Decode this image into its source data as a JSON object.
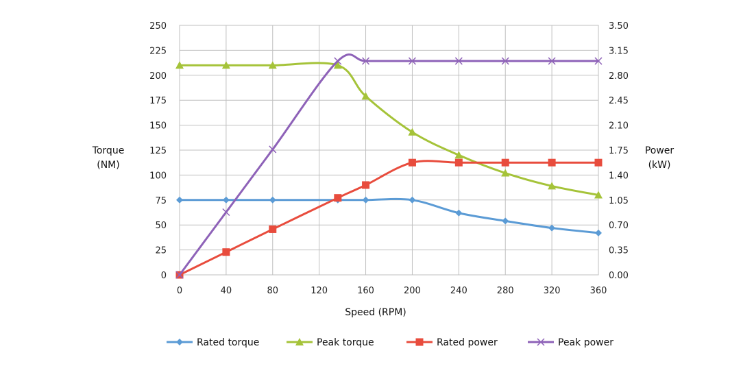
{
  "chart_data": {
    "type": "line",
    "xlabel": "Speed (RPM)",
    "ylabel_left": [
      "Torque",
      "(NM)"
    ],
    "ylabel_right": [
      "Power",
      "(kW)"
    ],
    "x_ticks": [
      "0",
      "40",
      "80",
      "120",
      "160",
      "200",
      "240",
      "280",
      "320",
      "360"
    ],
    "y_left_ticks": [
      "0",
      "25",
      "50",
      "75",
      "100",
      "125",
      "150",
      "175",
      "200",
      "225",
      "250"
    ],
    "y_right_ticks": [
      "0.00",
      "0.35",
      "0.70",
      "1.05",
      "1.40",
      "1.75",
      "2.10",
      "2.45",
      "2.80",
      "3.15",
      "3.50"
    ],
    "xlim": [
      0,
      360
    ],
    "ylim_left": [
      0,
      250
    ],
    "ylim_right": [
      0,
      3.5
    ],
    "grid": true,
    "legend_position": "bottom",
    "series": [
      {
        "name": "Rated torque",
        "axis": "left",
        "color": "#5b9bd5",
        "marker": "diamond",
        "x": [
          0,
          40,
          80,
          136,
          160,
          200,
          240,
          280,
          320,
          360
        ],
        "y": [
          75,
          75,
          75,
          75,
          75,
          75,
          62,
          54,
          47,
          42
        ]
      },
      {
        "name": "Peak torque",
        "axis": "left",
        "color": "#a5c339",
        "marker": "triangle",
        "x": [
          0,
          40,
          80,
          136,
          160,
          200,
          240,
          280,
          320,
          360
        ],
        "y": [
          210,
          210,
          210,
          210,
          179,
          143,
          120,
          102,
          89,
          80
        ]
      },
      {
        "name": "Rated power",
        "axis": "right",
        "color": "#e84c3d",
        "marker": "square",
        "x": [
          0,
          40,
          80,
          136,
          160,
          200,
          240,
          280,
          320,
          360
        ],
        "y": [
          0.0,
          0.32,
          0.64,
          1.08,
          1.26,
          1.575,
          1.575,
          1.575,
          1.575,
          1.575
        ]
      },
      {
        "name": "Peak power",
        "axis": "right",
        "color": "#8e62b8",
        "marker": "x",
        "x": [
          0,
          40,
          80,
          136,
          160,
          200,
          240,
          280,
          320,
          360
        ],
        "y": [
          0.0,
          0.88,
          1.76,
          3.0,
          3.0,
          3.0,
          3.0,
          3.0,
          3.0,
          3.0
        ]
      }
    ]
  }
}
